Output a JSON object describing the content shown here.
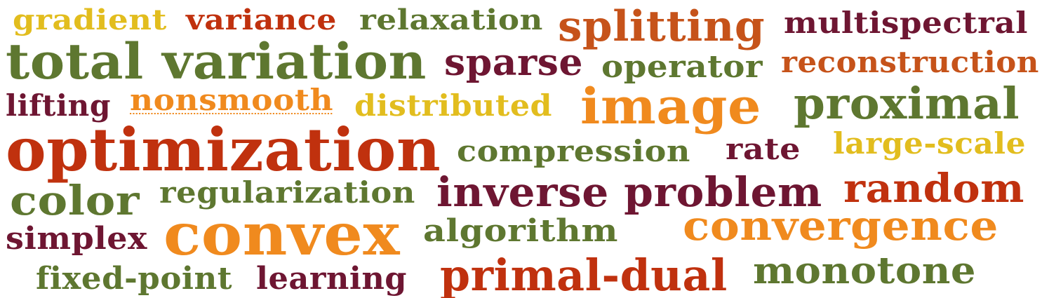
{
  "palette": {
    "yellow": "#E2BD1E",
    "red": "#C0310E",
    "olive": "#5E7730",
    "orange": "#F08A1E",
    "rust": "#C6531A",
    "maroon": "#6E1632",
    "background": "#FFFFFF"
  },
  "words": [
    {
      "id": "gradient",
      "text": "gradient",
      "color": "yellow"
    },
    {
      "id": "variance",
      "text": "variance",
      "color": "red"
    },
    {
      "id": "relaxation",
      "text": "relaxation",
      "color": "olive"
    },
    {
      "id": "splitting",
      "text": "splitting",
      "color": "rust"
    },
    {
      "id": "multispectral",
      "text": "multispectral",
      "color": "maroon"
    },
    {
      "id": "total-variation",
      "text": "total variation",
      "color": "olive"
    },
    {
      "id": "sparse",
      "text": "sparse",
      "color": "maroon"
    },
    {
      "id": "operator",
      "text": "operator",
      "color": "olive"
    },
    {
      "id": "reconstruction",
      "text": "reconstruction",
      "color": "rust"
    },
    {
      "id": "lifting",
      "text": "lifting",
      "color": "maroon"
    },
    {
      "id": "nonsmooth",
      "text": "nonsmooth",
      "color": "orange"
    },
    {
      "id": "distributed",
      "text": "distributed",
      "color": "yellow"
    },
    {
      "id": "image",
      "text": "image",
      "color": "orange"
    },
    {
      "id": "proximal",
      "text": "proximal",
      "color": "olive"
    },
    {
      "id": "optimization",
      "text": "optimization",
      "color": "red"
    },
    {
      "id": "compression",
      "text": "compression",
      "color": "olive"
    },
    {
      "id": "rate",
      "text": "rate",
      "color": "maroon"
    },
    {
      "id": "large-scale",
      "text": "large-scale",
      "color": "yellow"
    },
    {
      "id": "color",
      "text": "color",
      "color": "olive"
    },
    {
      "id": "regularization",
      "text": "regularization",
      "color": "olive"
    },
    {
      "id": "inverse-problem",
      "text": "inverse problem",
      "color": "maroon"
    },
    {
      "id": "random",
      "text": "random",
      "color": "red"
    },
    {
      "id": "simplex",
      "text": "simplex",
      "color": "maroon"
    },
    {
      "id": "convex",
      "text": "convex",
      "color": "orange"
    },
    {
      "id": "algorithm",
      "text": "algorithm",
      "color": "olive"
    },
    {
      "id": "convergence",
      "text": "convergence",
      "color": "orange"
    },
    {
      "id": "fixed-point",
      "text": "fixed-point",
      "color": "olive"
    },
    {
      "id": "learning",
      "text": "learning",
      "color": "maroon"
    },
    {
      "id": "primal-dual",
      "text": "primal-dual",
      "color": "red"
    },
    {
      "id": "monotone",
      "text": "monotone",
      "color": "olive"
    }
  ]
}
